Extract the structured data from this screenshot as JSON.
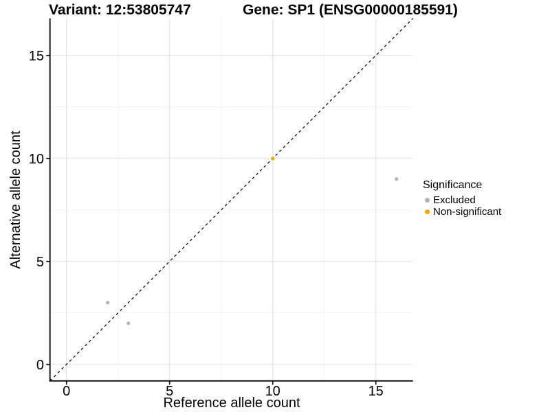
{
  "chart_data": {
    "type": "scatter",
    "title_left": "Variant: 12:53805747",
    "title_right": "Gene: SP1 (ENSG00000185591)",
    "xlabel": "Reference allele count",
    "ylabel": "Alternative allele count",
    "xlim": [
      -0.8,
      16.8
    ],
    "ylim": [
      -0.8,
      16.8
    ],
    "x_ticks": [
      0,
      5,
      10,
      15
    ],
    "y_ticks": [
      0,
      5,
      10,
      15
    ],
    "x_minor_gridlines": [
      2.5,
      7.5,
      12.5
    ],
    "y_minor_gridlines": [
      2.5,
      7.5,
      12.5
    ],
    "grid": true,
    "legend_position": "right",
    "identity_line": {
      "type": "y=x",
      "style": "dashed",
      "color": "#000000"
    },
    "series": [
      {
        "name": "Excluded",
        "color": "#B2B2B2",
        "points": [
          {
            "x": 2,
            "y": 3
          },
          {
            "x": 3,
            "y": 2
          },
          {
            "x": 16,
            "y": 9
          }
        ]
      },
      {
        "name": "Non-significant",
        "color": "#FFA500",
        "points": [
          {
            "x": 10,
            "y": 10
          }
        ]
      }
    ],
    "legend": {
      "title": "Significance"
    },
    "colors": {
      "grid_major": "#E4E4E4",
      "grid_minor": "#F1F1F1",
      "axis": "#000000",
      "tick_label": "#000000"
    }
  }
}
